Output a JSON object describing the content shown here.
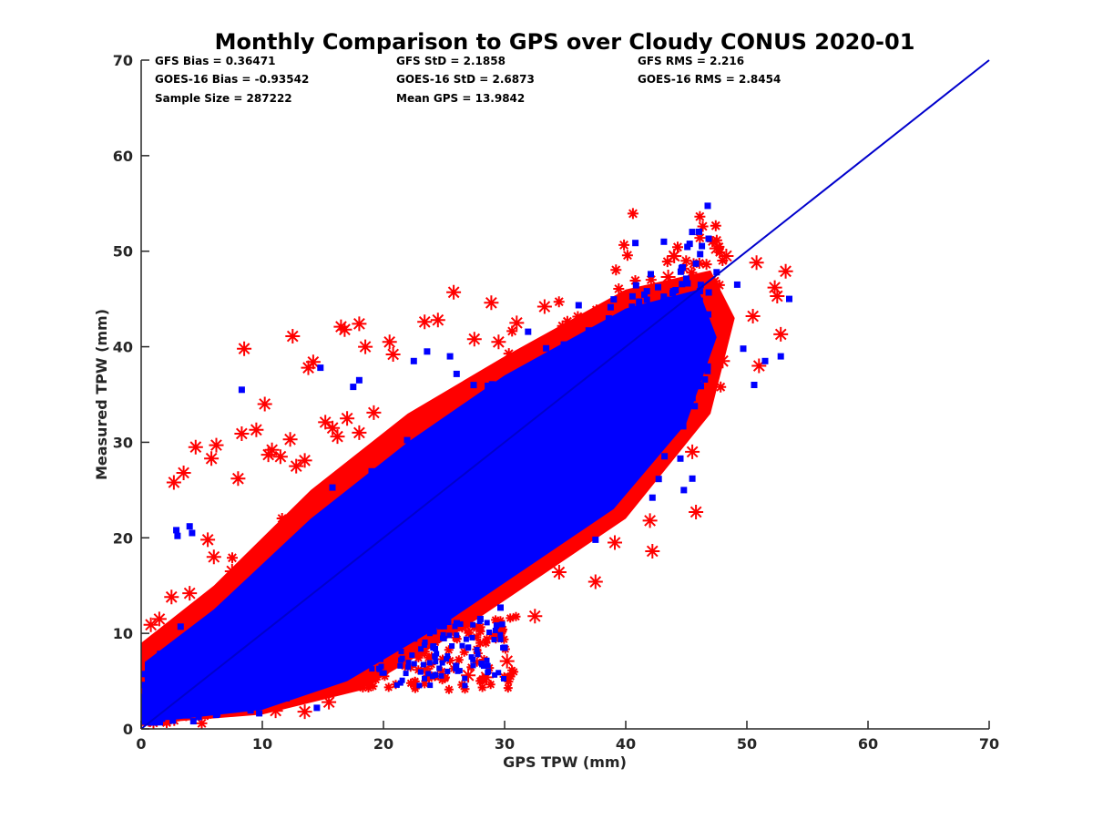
{
  "chart_data": {
    "type": "scatter",
    "title": "Monthly Comparison to GPS over Cloudy CONUS 2020-01",
    "xlabel": "GPS TPW (mm)",
    "ylabel": "Measured TPW (mm)",
    "xlim": [
      0,
      70
    ],
    "ylim": [
      0,
      70
    ],
    "xticks": [
      "0",
      "10",
      "20",
      "30",
      "40",
      "50",
      "60",
      "70"
    ],
    "yticks": [
      "0",
      "10",
      "20",
      "30",
      "40",
      "50",
      "60",
      "70"
    ],
    "grid": false,
    "stats": [
      [
        "GFS Bias = 0.36471",
        "GFS StD = 2.1858",
        "GFS RMS = 2.216"
      ],
      [
        "GOES-16 Bias = -0.93542",
        "GOES-16 StD = 2.6873",
        "GOES-16 RMS = 2.8454"
      ],
      [
        "Sample Size = 287222",
        "Mean GPS = 13.9842",
        ""
      ]
    ],
    "series": [
      {
        "marker": "asterisk",
        "color": "#ff0000",
        "outliers": [
          [
            8.5,
            39.8
          ],
          [
            10.2,
            34.0
          ],
          [
            12.5,
            41.1
          ],
          [
            13.8,
            37.8
          ],
          [
            14.2,
            38.4
          ],
          [
            16.5,
            42.1
          ],
          [
            16.8,
            41.8
          ],
          [
            18.0,
            42.4
          ],
          [
            18.5,
            40.0
          ],
          [
            20.5,
            40.5
          ],
          [
            20.8,
            39.2
          ],
          [
            23.4,
            42.6
          ],
          [
            24.5,
            42.8
          ],
          [
            25.8,
            45.7
          ],
          [
            28.9,
            44.6
          ],
          [
            27.5,
            40.8
          ],
          [
            29.5,
            40.5
          ],
          [
            31.0,
            42.5
          ],
          [
            33.3,
            44.2
          ],
          [
            2.7,
            25.8
          ],
          [
            3.5,
            26.8
          ],
          [
            4.5,
            29.5
          ],
          [
            6.2,
            29.7
          ],
          [
            5.8,
            28.3
          ],
          [
            8.0,
            26.2
          ],
          [
            8.3,
            30.9
          ],
          [
            9.5,
            31.3
          ],
          [
            10.5,
            28.7
          ],
          [
            10.8,
            29.2
          ],
          [
            11.5,
            28.5
          ],
          [
            12.3,
            30.3
          ],
          [
            12.8,
            27.5
          ],
          [
            13.5,
            28.1
          ],
          [
            15.2,
            32.1
          ],
          [
            15.8,
            31.5
          ],
          [
            16.2,
            30.6
          ],
          [
            17.0,
            32.5
          ],
          [
            18.0,
            31.0
          ],
          [
            19.2,
            33.1
          ],
          [
            5.5,
            19.8
          ],
          [
            6.0,
            18.0
          ],
          [
            37.5,
            15.4
          ],
          [
            34.5,
            16.4
          ],
          [
            32.0,
            16.8
          ],
          [
            32.5,
            11.8
          ],
          [
            28.2,
            14.5
          ],
          [
            26.8,
            10.8
          ],
          [
            30.2,
            7.1
          ],
          [
            28.5,
            5.4
          ],
          [
            27.0,
            5.6
          ],
          [
            23.5,
            6.3
          ],
          [
            13.5,
            1.8
          ],
          [
            11.1,
            1.9
          ],
          [
            15.5,
            2.8
          ],
          [
            42.2,
            18.6
          ],
          [
            39.1,
            19.5
          ],
          [
            42.0,
            21.8
          ],
          [
            45.8,
            22.7
          ],
          [
            45.5,
            29.0
          ],
          [
            44.2,
            30.5
          ],
          [
            43.5,
            47.3
          ],
          [
            44.0,
            49.5
          ],
          [
            47.5,
            50.3
          ],
          [
            48.3,
            49.5
          ],
          [
            50.8,
            48.8
          ],
          [
            53.2,
            47.9
          ],
          [
            52.3,
            46.2
          ],
          [
            52.5,
            45.3
          ],
          [
            52.8,
            41.3
          ],
          [
            50.5,
            43.2
          ],
          [
            46.5,
            45.8
          ],
          [
            48.0,
            38.5
          ],
          [
            51.0,
            38.0
          ],
          [
            0.8,
            10.9
          ],
          [
            1.5,
            11.5
          ],
          [
            2.5,
            13.8
          ],
          [
            4.0,
            14.2
          ],
          [
            7.5,
            16.5
          ]
        ]
      },
      {
        "marker": "square",
        "color": "#0000ff",
        "outliers": [
          [
            8.3,
            35.5
          ],
          [
            2.9,
            20.8
          ],
          [
            3.0,
            20.2
          ],
          [
            4.0,
            21.2
          ],
          [
            4.2,
            20.5
          ],
          [
            14.8,
            37.8
          ],
          [
            18.0,
            36.5
          ],
          [
            17.5,
            35.8
          ],
          [
            22.5,
            38.5
          ],
          [
            23.6,
            39.5
          ],
          [
            25.5,
            39.0
          ],
          [
            45.5,
            26.2
          ],
          [
            44.8,
            25.0
          ],
          [
            42.2,
            24.2
          ],
          [
            37.5,
            19.8
          ],
          [
            28.0,
            11.5
          ],
          [
            30.0,
            8.5
          ],
          [
            26.0,
            6.5
          ],
          [
            12.0,
            3.2
          ],
          [
            14.5,
            2.2
          ],
          [
            51.5,
            38.5
          ],
          [
            52.8,
            39.0
          ],
          [
            49.7,
            39.8
          ],
          [
            53.5,
            45.0
          ],
          [
            49.2,
            46.5
          ],
          [
            47.5,
            47.8
          ],
          [
            45.8,
            48.7
          ],
          [
            50.6,
            36.0
          ]
        ]
      }
    ],
    "reference_line": {
      "x": [
        0,
        70
      ],
      "y": [
        0,
        70
      ],
      "color": "#0000cc"
    }
  }
}
